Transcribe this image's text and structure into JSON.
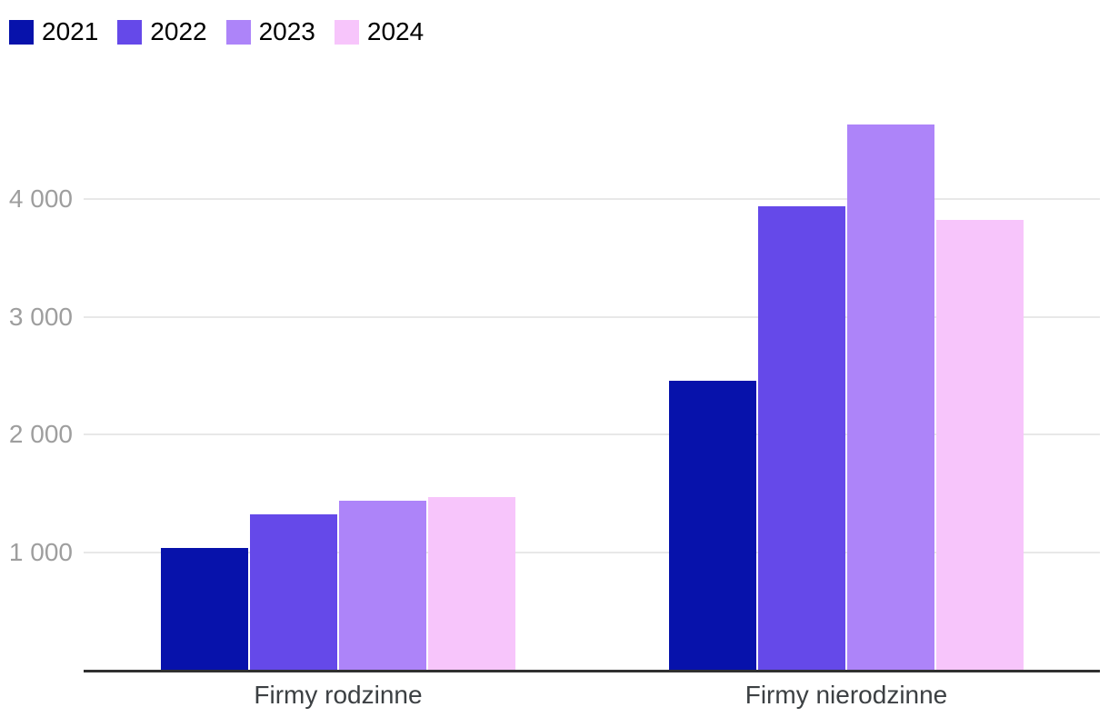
{
  "chart_data": {
    "type": "bar",
    "title": "",
    "xlabel": "",
    "ylabel": "",
    "categories": [
      "Firmy rodzinne",
      "Firmy nierodzinne"
    ],
    "series": [
      {
        "name": "2021",
        "color": "#0712ab",
        "values": [
          1030,
          2450
        ]
      },
      {
        "name": "2022",
        "color": "#6549e9",
        "values": [
          1320,
          3930
        ]
      },
      {
        "name": "2023",
        "color": "#ad84f9",
        "values": [
          1430,
          4620
        ]
      },
      {
        "name": "2024",
        "color": "#f7c5fb",
        "values": [
          1460,
          3810
        ]
      }
    ],
    "ylim": [
      0,
      5000
    ],
    "yticks": [
      1000,
      2000,
      3000,
      4000
    ],
    "ytick_labels": [
      "1 000",
      "2 000",
      "3 000",
      "4 000"
    ],
    "grid": true,
    "legend_position": "top-left",
    "colors": {
      "background": "#ffffff",
      "gridline": "#e8e8e8",
      "axis_line": "#303030",
      "ytick_label": "#9e9e9e",
      "category_label": "#3c4043",
      "legend_text": "#000000"
    }
  }
}
